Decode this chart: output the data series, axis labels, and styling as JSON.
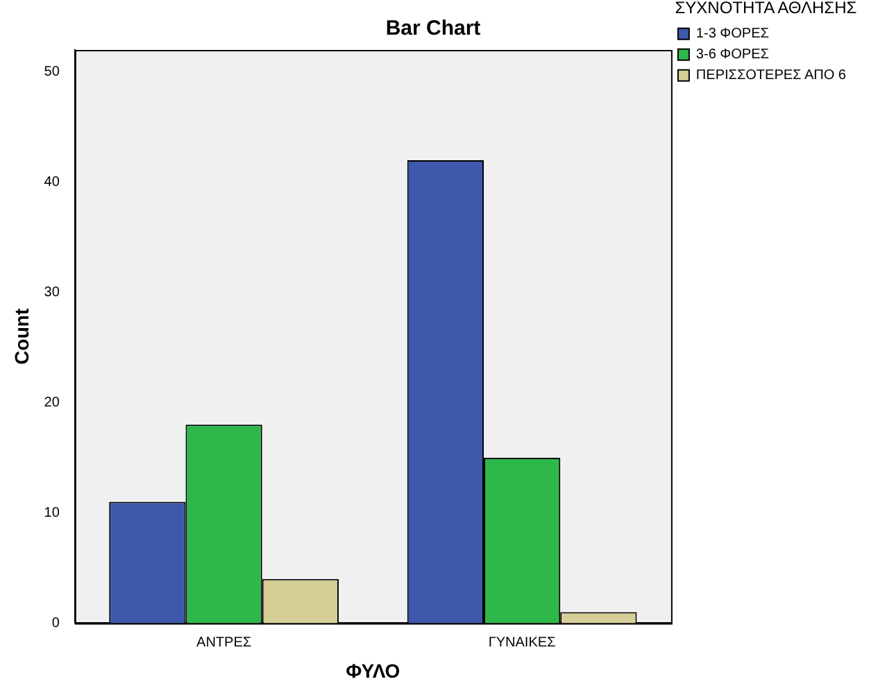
{
  "chart_data": {
    "type": "bar",
    "title": "Bar Chart",
    "xlabel": "ΦΥΛΟ",
    "ylabel": "Count",
    "legend_title": "ΣΥΧΝΟΤΗΤΑ ΑΘΛΗΣΗΣ",
    "categories": [
      "ΑΝΤΡΕΣ",
      "ΓΥΝΑΙΚΕΣ"
    ],
    "series": [
      {
        "name": "1-3 ΦΟΡΕΣ",
        "color": "#3e58ac",
        "values": [
          11,
          42
        ]
      },
      {
        "name": "3-6 ΦΟΡΕΣ",
        "color": "#2eb84a",
        "values": [
          18,
          15
        ]
      },
      {
        "name": "ΠΕΡΙΣΣΟΤΕΡΕΣ ΑΠΟ 6",
        "color": "#d5ce96",
        "values": [
          4,
          1
        ]
      }
    ],
    "ylim": [
      0,
      52
    ],
    "yticks": [
      0,
      10,
      20,
      30,
      40,
      50
    ],
    "grid": false,
    "legend": "top right"
  }
}
